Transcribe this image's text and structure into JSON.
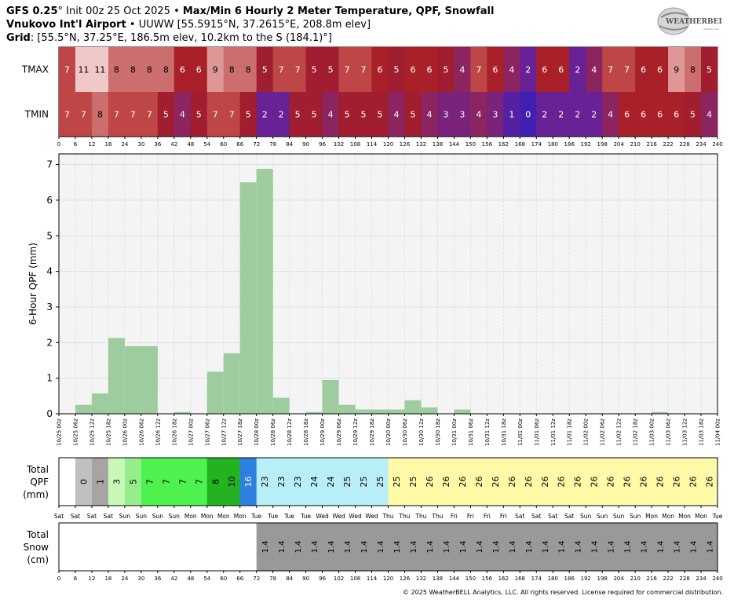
{
  "header": {
    "model": "GFS 0.25",
    "deg": "°",
    "init": " Init 00z 25 Oct 2025",
    "sep": " • ",
    "title": "Max/Min 6 Hourly 2 Meter Temperature,  QPF,  Snowfall",
    "station": "Vnukovo Int'l Airport",
    "station_info": " • UUWW [55.5915°N, 37.2615°E, 208.8m elev]",
    "grid_label": "Grid",
    "grid_info": ": [55.5°N, 37.25°E, 186.5m elev, 10.2km to the S (184.1)°]"
  },
  "logo": {
    "text": "WEATHERBELL",
    "sub": "Analytics LLC"
  },
  "copyright": "© 2025 WeatherBELL Analytics, LLC. All rights reserved. License required for commercial distribution.",
  "chart_data": [
    {
      "type": "heatmap",
      "rows": [
        "TMAX",
        "TMIN"
      ],
      "x_hours": [
        0,
        6,
        12,
        18,
        24,
        30,
        36,
        42,
        48,
        54,
        60,
        66,
        72,
        78,
        84,
        90,
        96,
        102,
        108,
        114,
        120,
        126,
        132,
        138,
        144,
        150,
        156,
        162,
        168,
        174,
        180,
        186,
        192,
        198,
        204,
        210,
        216,
        222,
        228,
        234,
        240
      ],
      "tmax": [
        7,
        11,
        11,
        8,
        8,
        8,
        8,
        6,
        6,
        9,
        8,
        8,
        5,
        7,
        7,
        5,
        5,
        7,
        7,
        6,
        5,
        6,
        6,
        5,
        4,
        7,
        6,
        4,
        2,
        6,
        6,
        2,
        4,
        7,
        7,
        6,
        6,
        9,
        8,
        5
      ],
      "tmin": [
        7,
        7,
        8,
        7,
        7,
        7,
        5,
        4,
        5,
        7,
        7,
        5,
        2,
        2,
        5,
        5,
        4,
        5,
        5,
        5,
        4,
        5,
        4,
        3,
        3,
        4,
        3,
        1,
        0,
        2,
        2,
        2,
        2,
        4,
        6,
        6,
        6,
        6,
        5,
        4
      ]
    },
    {
      "type": "bar",
      "ylabel": "6-Hour QPF (mm)",
      "ylim": [
        0,
        7.3
      ],
      "yticks": [
        0,
        1,
        2,
        3,
        4,
        5,
        6,
        7
      ],
      "x_labels": [
        "10/25 00z",
        "10/25 06z",
        "10/25 12z",
        "10/25 18z",
        "10/26 00z",
        "10/26 06z",
        "10/26 12z",
        "10/26 18z",
        "10/27 00z",
        "10/27 06z",
        "10/27 12z",
        "10/27 18z",
        "10/28 00z",
        "10/28 06z",
        "10/28 12z",
        "10/28 18z",
        "10/29 00z",
        "10/29 06z",
        "10/29 12z",
        "10/29 18z",
        "10/30 00z",
        "10/30 06z",
        "10/30 12z",
        "10/30 18z",
        "10/31 00z",
        "10/31 06z",
        "10/31 12z",
        "10/31 18z",
        "11/01 00z",
        "11/01 06z",
        "11/01 12z",
        "11/01 18z",
        "11/02 00z",
        "11/02 06z",
        "11/02 12z",
        "11/02 18z",
        "11/03 00z",
        "11/03 06z",
        "11/03 12z",
        "11/03 18z",
        "11/04 00z"
      ],
      "values": [
        0,
        0.25,
        0.57,
        2.13,
        1.9,
        1.9,
        0,
        0.05,
        0,
        1.18,
        1.7,
        6.5,
        6.88,
        0.45,
        0,
        0.05,
        0.95,
        0.25,
        0.12,
        0.12,
        0.12,
        0.38,
        0.18,
        0,
        0.12,
        0,
        0,
        0,
        0,
        0,
        0,
        0,
        0,
        0,
        0,
        0,
        0.05,
        0,
        0,
        0
      ],
      "bar_color": "#9fcc9f",
      "grid": true
    },
    {
      "type": "table",
      "label": [
        "Total",
        "QPF",
        "(mm)"
      ],
      "values": [
        "",
        "0",
        "1",
        "3",
        "5",
        "7",
        "7",
        "7",
        "7",
        "8",
        "10",
        "16",
        "23",
        "23",
        "23",
        "24",
        "24",
        "25",
        "25",
        "25",
        "25",
        "25",
        "26",
        "26",
        "26",
        "26",
        "26",
        "26",
        "26",
        "26",
        "26",
        "26",
        "26",
        "26",
        "26",
        "26",
        "26",
        "26",
        "26",
        "26"
      ],
      "colors": [
        "#ffffff",
        "#c0c0c0",
        "#a9a4a4",
        "#c8f7b6",
        "#96ed8c",
        "#4ef24e",
        "#4ef24e",
        "#4ef24e",
        "#4ef24e",
        "#22b222",
        "#22b222",
        "#2d7fe0",
        "#b8eef8",
        "#b8eef8",
        "#b8eef8",
        "#b8eef8",
        "#b8eef8",
        "#b8eef8",
        "#b8eef8",
        "#b8eef8",
        "#fffaa8",
        "#fffaa8",
        "#fffaa8",
        "#fffaa8",
        "#fffaa8",
        "#fffaa8",
        "#fffaa8",
        "#fffaa8",
        "#fffaa8",
        "#fffaa8",
        "#fffaa8",
        "#fffaa8",
        "#fffaa8",
        "#fffaa8",
        "#fffaa8",
        "#fffaa8",
        "#fffaa8",
        "#fffaa8",
        "#fffaa8",
        "#fffaa8"
      ],
      "day_labels": [
        "Sat",
        "Sat",
        "Sat",
        "Sat",
        "Sun",
        "Sun",
        "Sun",
        "Sun",
        "Mon",
        "Mon",
        "Mon",
        "Mon",
        "Tue",
        "Tue",
        "Tue",
        "Tue",
        "Wed",
        "Wed",
        "Wed",
        "Wed",
        "Thu",
        "Thu",
        "Thu",
        "Thu",
        "Fri",
        "Fri",
        "Fri",
        "Fri",
        "Sat",
        "Sat",
        "Sat",
        "Sat",
        "Sun",
        "Sun",
        "Sun",
        "Sun",
        "Mon",
        "Mon",
        "Mon",
        "Mon",
        "Tue"
      ]
    },
    {
      "type": "table",
      "label": [
        "Total",
        "Snow",
        "(cm)"
      ],
      "values": [
        "",
        "",
        "",
        "",
        "",
        "",
        "",
        "",
        "",
        "",
        "",
        "",
        "1.4",
        "1.4",
        "1.4",
        "1.4",
        "1.4",
        "1.4",
        "1.4",
        "1.4",
        "1.4",
        "1.4",
        "1.4",
        "1.4",
        "1.4",
        "1.4",
        "1.4",
        "1.4",
        "1.4",
        "1.4",
        "1.4",
        "1.4",
        "1.4",
        "1.4",
        "1.4",
        "1.4",
        "1.4",
        "1.4",
        "1.4",
        "1.4"
      ],
      "fill_color": "#999999"
    }
  ]
}
